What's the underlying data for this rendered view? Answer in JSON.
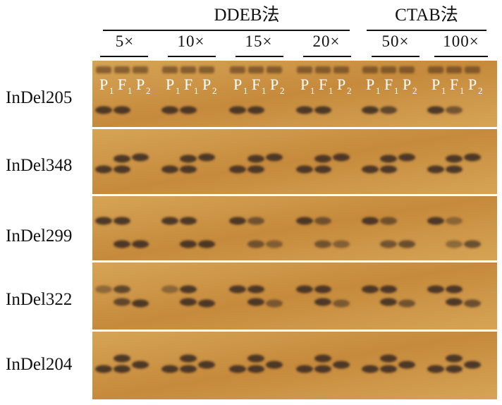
{
  "figure": {
    "methods": [
      "DDEB法",
      "CTAB法"
    ],
    "dilutions": [
      "5×",
      "10×",
      "15×",
      "20×",
      "50×",
      "100×"
    ],
    "lane_labels": [
      "P",
      "F",
      "P"
    ],
    "lane_subscripts": [
      "1",
      "1",
      "2"
    ],
    "markers": [
      "InDel205",
      "InDel348",
      "InDel299",
      "InDel322",
      "InDel204"
    ]
  },
  "colors": {
    "gel_base": "#c68a3c",
    "gel_light": "#d6a456",
    "band": "#3f2f22",
    "separator": "#ffffff"
  },
  "bands": [
    [
      [
        1,
        1,
        0
      ],
      [
        1,
        1,
        0
      ],
      [
        1,
        1,
        0
      ],
      [
        1,
        1,
        0
      ],
      [
        1,
        0.8,
        0
      ],
      [
        1,
        0.6,
        0
      ]
    ],
    [
      [
        1,
        1,
        1
      ],
      [
        1,
        1,
        1
      ],
      [
        1,
        1,
        1
      ],
      [
        1,
        1,
        1
      ],
      [
        1,
        1,
        1
      ],
      [
        1,
        1,
        1
      ]
    ],
    [
      [
        1,
        1,
        1
      ],
      [
        1,
        1,
        1
      ],
      [
        1,
        0.6,
        0.4
      ],
      [
        1,
        0.6,
        0.4
      ],
      [
        1,
        0.6,
        0.7
      ],
      [
        1,
        0.3,
        0.7
      ]
    ],
    [
      [
        0.3,
        0.8,
        1
      ],
      [
        0.3,
        1,
        1
      ],
      [
        1,
        1,
        0.5
      ],
      [
        1,
        1,
        0.5
      ],
      [
        1,
        1,
        0.6
      ],
      [
        1,
        1,
        0.7
      ]
    ],
    [
      [
        1,
        1,
        1
      ],
      [
        1,
        1,
        1
      ],
      [
        1,
        1,
        1
      ],
      [
        1,
        1,
        1
      ],
      [
        1,
        1,
        1
      ],
      [
        1,
        1,
        1
      ]
    ]
  ]
}
